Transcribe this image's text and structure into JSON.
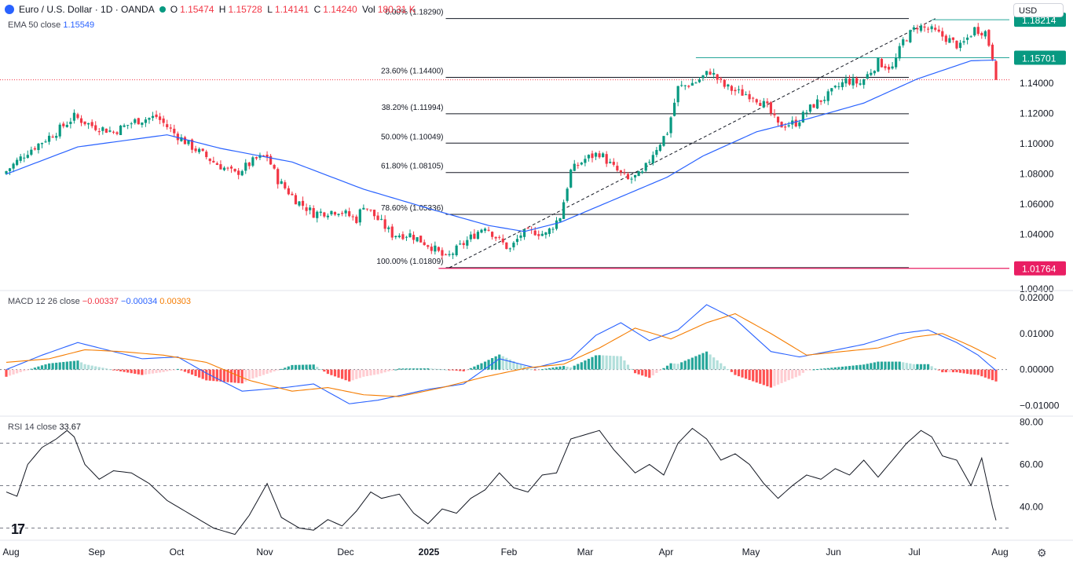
{
  "header": {
    "symbol": "Euro / U.S. Dollar · 1D · OANDA",
    "o_label": "O",
    "o_value": "1.15474",
    "h_label": "H",
    "h_value": "1.15728",
    "l_label": "L",
    "l_value": "1.14141",
    "c_label": "C",
    "c_value": "1.14240",
    "vol_label": "Vol",
    "vol_value": "180.31 K",
    "currency": "USD"
  },
  "colors": {
    "up": "#089981",
    "down": "#f23645",
    "ema": "#2962ff",
    "macd": "#2962ff",
    "signal": "#f57c00",
    "fib": "#131722",
    "level_low": "#e91e63",
    "level_res": "#26a69a"
  },
  "indicators": {
    "ema_label": "EMA 50 close",
    "ema_value": "1.15549",
    "macd_label": "MACD 12 26 close",
    "macd_hist": "−0.00337",
    "macd_line": "−0.00034",
    "macd_signal": "0.00303",
    "rsi_label": "RSI 14 close",
    "rsi_value": "33.67"
  },
  "chart_data": {
    "type": "candlestick",
    "x_axis_labels": [
      "Aug",
      "Sep",
      "Oct",
      "Nov",
      "Dec",
      "2025",
      "Feb",
      "Mar",
      "Apr",
      "May",
      "Jun",
      "Jul",
      "Aug"
    ],
    "price_axis": {
      "ticks": [
        "1.14000",
        "1.12000",
        "1.10000",
        "1.08000",
        "1.06000",
        "1.04000",
        "1.00400"
      ],
      "range": [
        1.004,
        1.19
      ]
    },
    "price_tags": [
      {
        "value": "1.18214",
        "color": "#089981"
      },
      {
        "value": "1.15701",
        "color": "#089981"
      },
      {
        "value": "1.01764",
        "color": "#e91e63"
      }
    ],
    "fib_levels": [
      {
        "label": "0.00% (1.18290)",
        "value": 1.1829
      },
      {
        "label": "23.60% (1.14400)",
        "value": 1.144
      },
      {
        "label": "38.20% (1.11994)",
        "value": 1.11994
      },
      {
        "label": "50.00% (1.10049)",
        "value": 1.10049
      },
      {
        "label": "61.80% (1.08105)",
        "value": 1.08105
      },
      {
        "label": "78.60% (1.05336)",
        "value": 1.05336
      },
      {
        "label": "100.00% (1.01809)",
        "value": 1.01809
      }
    ],
    "close_anchors": [
      [
        0,
        1.082
      ],
      [
        6,
        1.095
      ],
      [
        14,
        1.108
      ],
      [
        19,
        1.118
      ],
      [
        24,
        1.112
      ],
      [
        30,
        1.108
      ],
      [
        36,
        1.115
      ],
      [
        42,
        1.118
      ],
      [
        47,
        1.107
      ],
      [
        52,
        1.098
      ],
      [
        58,
        1.088
      ],
      [
        64,
        1.08
      ],
      [
        70,
        1.09
      ],
      [
        73,
        1.092
      ],
      [
        76,
        1.076
      ],
      [
        81,
        1.063
      ],
      [
        86,
        1.054
      ],
      [
        93,
        1.056
      ],
      [
        98,
        1.05
      ],
      [
        100,
        1.06
      ],
      [
        104,
        1.05
      ],
      [
        108,
        1.04
      ],
      [
        113,
        1.04
      ],
      [
        119,
        1.032
      ],
      [
        123,
        1.024
      ],
      [
        127,
        1.032
      ],
      [
        131,
        1.04
      ],
      [
        134,
        1.046
      ],
      [
        138,
        1.036
      ],
      [
        141,
        1.03
      ],
      [
        144,
        1.04
      ],
      [
        148,
        1.042
      ],
      [
        151,
        1.04
      ],
      [
        155,
        1.052
      ],
      [
        158,
        1.082
      ],
      [
        162,
        1.09
      ],
      [
        166,
        1.094
      ],
      [
        170,
        1.084
      ],
      [
        174,
        1.076
      ],
      [
        178,
        1.08
      ],
      [
        181,
        1.094
      ],
      [
        185,
        1.108
      ],
      [
        188,
        1.137
      ],
      [
        193,
        1.141
      ],
      [
        197,
        1.148
      ],
      [
        201,
        1.138
      ],
      [
        205,
        1.134
      ],
      [
        209,
        1.132
      ],
      [
        213,
        1.124
      ],
      [
        216,
        1.112
      ],
      [
        221,
        1.114
      ],
      [
        226,
        1.126
      ],
      [
        230,
        1.132
      ],
      [
        235,
        1.142
      ],
      [
        239,
        1.14
      ],
      [
        244,
        1.154
      ],
      [
        248,
        1.15
      ],
      [
        251,
        1.168
      ],
      [
        255,
        1.178
      ],
      [
        259,
        1.175
      ],
      [
        263,
        1.17
      ],
      [
        267,
        1.164
      ],
      [
        271,
        1.176
      ],
      [
        274,
        1.174
      ],
      [
        276,
        1.158
      ],
      [
        277,
        1.1424
      ]
    ],
    "ema_anchors": [
      [
        0,
        1.08
      ],
      [
        20,
        1.098
      ],
      [
        45,
        1.106
      ],
      [
        60,
        1.097
      ],
      [
        80,
        1.088
      ],
      [
        100,
        1.07
      ],
      [
        120,
        1.056
      ],
      [
        135,
        1.046
      ],
      [
        145,
        1.042
      ],
      [
        155,
        1.048
      ],
      [
        170,
        1.063
      ],
      [
        185,
        1.078
      ],
      [
        195,
        1.092
      ],
      [
        210,
        1.108
      ],
      [
        225,
        1.117
      ],
      [
        240,
        1.127
      ],
      [
        255,
        1.143
      ],
      [
        270,
        1.155
      ],
      [
        277,
        1.1555
      ]
    ],
    "macd_axis": {
      "ticks": [
        "0.02000",
        "0.01000",
        "0.00000",
        "−0.01000"
      ],
      "range": [
        -0.0125,
        0.0215
      ]
    },
    "macd_anchors": [
      [
        0,
        0.0
      ],
      [
        10,
        0.004
      ],
      [
        20,
        0.0075
      ],
      [
        28,
        0.0055
      ],
      [
        38,
        0.003
      ],
      [
        48,
        0.0035
      ],
      [
        56,
        -0.001
      ],
      [
        66,
        -0.006
      ],
      [
        78,
        -0.005
      ],
      [
        86,
        -0.004
      ],
      [
        96,
        -0.0095
      ],
      [
        104,
        -0.0085
      ],
      [
        118,
        -0.0055
      ],
      [
        128,
        -0.004
      ],
      [
        138,
        0.003
      ],
      [
        148,
        0.0005
      ],
      [
        158,
        0.003
      ],
      [
        165,
        0.0095
      ],
      [
        172,
        0.013
      ],
      [
        180,
        0.008
      ],
      [
        188,
        0.011
      ],
      [
        196,
        0.018
      ],
      [
        204,
        0.014
      ],
      [
        214,
        0.005
      ],
      [
        222,
        0.0035
      ],
      [
        230,
        0.005
      ],
      [
        240,
        0.007
      ],
      [
        250,
        0.01
      ],
      [
        258,
        0.011
      ],
      [
        266,
        0.0075
      ],
      [
        272,
        0.004
      ],
      [
        277,
        -0.0003
      ]
    ],
    "signal_anchors": [
      [
        0,
        0.002
      ],
      [
        12,
        0.003
      ],
      [
        22,
        0.0055
      ],
      [
        32,
        0.005
      ],
      [
        44,
        0.004
      ],
      [
        56,
        0.002
      ],
      [
        68,
        -0.003
      ],
      [
        80,
        -0.006
      ],
      [
        90,
        -0.005
      ],
      [
        100,
        -0.007
      ],
      [
        110,
        -0.0075
      ],
      [
        122,
        -0.005
      ],
      [
        134,
        -0.002
      ],
      [
        146,
        0.0005
      ],
      [
        156,
        0.0015
      ],
      [
        166,
        0.006
      ],
      [
        176,
        0.0115
      ],
      [
        186,
        0.0085
      ],
      [
        196,
        0.013
      ],
      [
        204,
        0.0155
      ],
      [
        214,
        0.01
      ],
      [
        224,
        0.004
      ],
      [
        234,
        0.005
      ],
      [
        244,
        0.006
      ],
      [
        254,
        0.009
      ],
      [
        262,
        0.01
      ],
      [
        270,
        0.0065
      ],
      [
        277,
        0.003
      ]
    ],
    "rsi_axis": {
      "ticks": [
        "80.00",
        "60.00",
        "40.00"
      ],
      "range": [
        25,
        82
      ],
      "bands": [
        70,
        50,
        30
      ]
    },
    "rsi_anchors": [
      [
        0,
        47
      ],
      [
        3,
        45
      ],
      [
        6,
        60
      ],
      [
        10,
        68
      ],
      [
        14,
        72
      ],
      [
        17,
        76
      ],
      [
        19,
        73
      ],
      [
        22,
        60
      ],
      [
        26,
        53
      ],
      [
        30,
        57
      ],
      [
        35,
        56
      ],
      [
        40,
        51
      ],
      [
        45,
        43
      ],
      [
        52,
        36
      ],
      [
        58,
        30
      ],
      [
        64,
        27
      ],
      [
        68,
        36
      ],
      [
        73,
        51
      ],
      [
        77,
        35
      ],
      [
        82,
        30
      ],
      [
        86,
        29
      ],
      [
        90,
        34
      ],
      [
        94,
        31
      ],
      [
        98,
        38
      ],
      [
        102,
        47
      ],
      [
        105,
        44
      ],
      [
        110,
        46
      ],
      [
        114,
        37
      ],
      [
        118,
        32
      ],
      [
        122,
        39
      ],
      [
        126,
        37
      ],
      [
        130,
        44
      ],
      [
        134,
        48
      ],
      [
        138,
        56
      ],
      [
        142,
        49
      ],
      [
        146,
        47
      ],
      [
        150,
        55
      ],
      [
        154,
        56
      ],
      [
        158,
        72
      ],
      [
        162,
        74
      ],
      [
        166,
        76
      ],
      [
        170,
        67
      ],
      [
        176,
        56
      ],
      [
        180,
        60
      ],
      [
        184,
        55
      ],
      [
        188,
        70
      ],
      [
        192,
        77
      ],
      [
        196,
        72
      ],
      [
        200,
        62
      ],
      [
        204,
        65
      ],
      [
        208,
        60
      ],
      [
        212,
        51
      ],
      [
        216,
        44
      ],
      [
        220,
        50
      ],
      [
        224,
        55
      ],
      [
        228,
        53
      ],
      [
        232,
        58
      ],
      [
        236,
        55
      ],
      [
        240,
        62
      ],
      [
        244,
        54
      ],
      [
        248,
        62
      ],
      [
        252,
        70
      ],
      [
        256,
        76
      ],
      [
        259,
        73
      ],
      [
        262,
        64
      ],
      [
        266,
        62
      ],
      [
        270,
        50
      ],
      [
        273,
        63
      ],
      [
        276,
        40
      ],
      [
        277,
        33.67
      ]
    ]
  }
}
